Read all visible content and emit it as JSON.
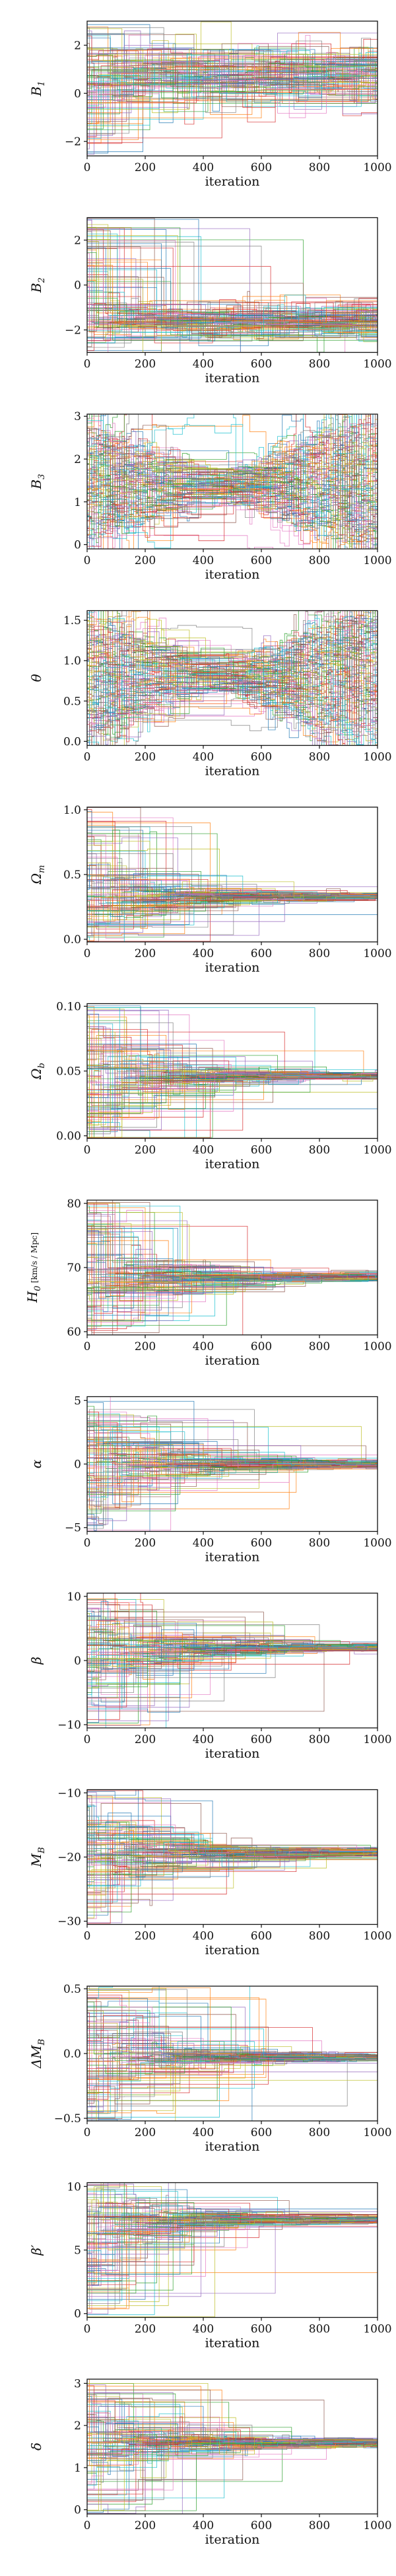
{
  "chart_data": [
    {
      "type": "line",
      "ylabel": "B",
      "ylabel_sub": "1",
      "ylabel_unit": "",
      "xlabel": "iteration",
      "x_range": [
        0,
        1000
      ],
      "xticks": [
        0,
        200,
        400,
        600,
        800,
        1000
      ],
      "xtick_labels": [
        "0",
        "200",
        "400",
        "600",
        "800",
        "1000"
      ],
      "ylim": [
        -2.6,
        3.0
      ],
      "yticks": [
        -2,
        0,
        2
      ],
      "ytick_labels": [
        "−2",
        "0",
        "2"
      ],
      "n_walkers": 100,
      "behavior": "stationary",
      "center": 0.75,
      "spread": 1.15
    },
    {
      "type": "line",
      "ylabel": "B",
      "ylabel_sub": "2",
      "ylabel_unit": "",
      "xlabel": "iteration",
      "x_range": [
        0,
        1000
      ],
      "xticks": [
        0,
        200,
        400,
        600,
        800,
        1000
      ],
      "xtick_labels": [
        "0",
        "200",
        "400",
        "600",
        "800",
        "1000"
      ],
      "ylim": [
        -3.0,
        3.0
      ],
      "yticks": [
        -2,
        0,
        2
      ],
      "ytick_labels": [
        "−2",
        "0",
        "2"
      ],
      "n_walkers": 100,
      "behavior": "stationary",
      "center": -1.6,
      "spread": 0.75
    },
    {
      "type": "line",
      "ylabel": "B",
      "ylabel_sub": "3",
      "ylabel_unit": "",
      "xlabel": "iteration",
      "x_range": [
        0,
        1000
      ],
      "xticks": [
        0,
        200,
        400,
        600,
        800,
        1000
      ],
      "xtick_labels": [
        "0",
        "200",
        "400",
        "600",
        "800",
        "1000"
      ],
      "ylim": [
        -0.1,
        3.05
      ],
      "yticks": [
        0,
        1,
        2,
        3
      ],
      "ytick_labels": [
        "0",
        "1",
        "2",
        "3"
      ],
      "n_walkers": 100,
      "behavior": "funnel-spread",
      "center": 1.4,
      "spread": 1.4
    },
    {
      "type": "line",
      "ylabel": "θ",
      "ylabel_sub": "",
      "ylabel_unit": "",
      "xlabel": "iteration",
      "x_range": [
        0,
        1000
      ],
      "xticks": [
        0,
        200,
        400,
        600,
        800,
        1000
      ],
      "xtick_labels": [
        "0",
        "200",
        "400",
        "600",
        "800",
        "1000"
      ],
      "ylim": [
        -0.05,
        1.62
      ],
      "yticks": [
        0.0,
        0.5,
        1.0,
        1.5
      ],
      "ytick_labels": [
        "0.0",
        "0.5",
        "1.0",
        "1.5"
      ],
      "n_walkers": 100,
      "behavior": "funnel-spread",
      "center": 0.8,
      "spread": 0.75
    },
    {
      "type": "line",
      "ylabel": "Ω",
      "ylabel_sub": "m",
      "ylabel_unit": "",
      "xlabel": "iteration",
      "x_range": [
        0,
        1000
      ],
      "xticks": [
        0,
        200,
        400,
        600,
        800,
        1000
      ],
      "xtick_labels": [
        "0",
        "200",
        "400",
        "600",
        "800",
        "1000"
      ],
      "ylim": [
        -0.02,
        1.02
      ],
      "yticks": [
        0.0,
        0.5,
        1.0
      ],
      "ytick_labels": [
        "0.0",
        "0.5",
        "1.0"
      ],
      "n_walkers": 100,
      "behavior": "converge",
      "center": 0.33,
      "spread": 0.45
    },
    {
      "type": "line",
      "ylabel": "Ω",
      "ylabel_sub": "b",
      "ylabel_unit": "",
      "xlabel": "iteration",
      "x_range": [
        0,
        1000
      ],
      "xticks": [
        0,
        200,
        400,
        600,
        800,
        1000
      ],
      "xtick_labels": [
        "0",
        "200",
        "400",
        "600",
        "800",
        "1000"
      ],
      "ylim": [
        -0.002,
        0.102
      ],
      "yticks": [
        0.0,
        0.05,
        0.1
      ],
      "ytick_labels": [
        "0.00",
        "0.05",
        "0.10"
      ],
      "n_walkers": 100,
      "behavior": "converge",
      "center": 0.046,
      "spread": 0.05
    },
    {
      "type": "line",
      "ylabel": "H",
      "ylabel_sub": "0",
      "ylabel_unit": "[km/s / Mpc]",
      "xlabel": "iteration",
      "x_range": [
        0,
        1000
      ],
      "xticks": [
        0,
        200,
        400,
        600,
        800,
        1000
      ],
      "xtick_labels": [
        "0",
        "200",
        "400",
        "600",
        "800",
        "1000"
      ],
      "ylim": [
        59.5,
        80.5
      ],
      "yticks": [
        60,
        70,
        80
      ],
      "ytick_labels": [
        "60",
        "70",
        "80"
      ],
      "n_walkers": 100,
      "behavior": "converge",
      "center": 68.5,
      "spread": 10
    },
    {
      "type": "line",
      "ylabel": "α",
      "ylabel_sub": "",
      "ylabel_unit": "",
      "xlabel": "iteration",
      "x_range": [
        0,
        1000
      ],
      "xticks": [
        0,
        200,
        400,
        600,
        800,
        1000
      ],
      "xtick_labels": [
        "0",
        "200",
        "400",
        "600",
        "800",
        "1000"
      ],
      "ylim": [
        -5.3,
        5.3
      ],
      "yticks": [
        -5,
        0,
        5
      ],
      "ytick_labels": [
        "−5",
        "0",
        "5"
      ],
      "n_walkers": 100,
      "behavior": "converge",
      "center": 0.0,
      "spread": 5
    },
    {
      "type": "line",
      "ylabel": "β",
      "ylabel_sub": "",
      "ylabel_unit": "",
      "xlabel": "iteration",
      "x_range": [
        0,
        1000
      ],
      "xticks": [
        0,
        200,
        400,
        600,
        800,
        1000
      ],
      "xtick_labels": [
        "0",
        "200",
        "400",
        "600",
        "800",
        "1000"
      ],
      "ylim": [
        -10.5,
        10.5
      ],
      "yticks": [
        -10,
        0,
        10
      ],
      "ytick_labels": [
        "−10",
        "0",
        "10"
      ],
      "n_walkers": 100,
      "behavior": "converge",
      "center": 2.0,
      "spread": 10
    },
    {
      "type": "line",
      "ylabel": "M",
      "ylabel_sub": "B",
      "ylabel_unit": "",
      "xlabel": "iteration",
      "x_range": [
        0,
        1000
      ],
      "xticks": [
        0,
        200,
        400,
        600,
        800,
        1000
      ],
      "xtick_labels": [
        "0",
        "200",
        "400",
        "600",
        "800",
        "1000"
      ],
      "ylim": [
        -30.5,
        -9.5
      ],
      "yticks": [
        -30,
        -20,
        -10
      ],
      "ytick_labels": [
        "−30",
        "−20",
        "−10"
      ],
      "n_walkers": 100,
      "behavior": "converge",
      "center": -19.3,
      "spread": 10
    },
    {
      "type": "line",
      "ylabel": "ΔM",
      "ylabel_sub": "B",
      "ylabel_unit": "",
      "xlabel": "iteration",
      "x_range": [
        0,
        1000
      ],
      "xticks": [
        0,
        200,
        400,
        600,
        800,
        1000
      ],
      "xtick_labels": [
        "0",
        "200",
        "400",
        "600",
        "800",
        "1000"
      ],
      "ylim": [
        -0.52,
        0.52
      ],
      "yticks": [
        -0.5,
        0.0,
        0.5
      ],
      "ytick_labels": [
        "−0.5",
        "0.0",
        "0.5"
      ],
      "n_walkers": 100,
      "behavior": "converge",
      "center": -0.03,
      "spread": 0.5
    },
    {
      "type": "line",
      "ylabel": "β′",
      "ylabel_sub": "",
      "ylabel_unit": "",
      "xlabel": "iteration",
      "x_range": [
        0,
        1000
      ],
      "xticks": [
        0,
        200,
        400,
        600,
        800,
        1000
      ],
      "xtick_labels": [
        "0",
        "200",
        "400",
        "600",
        "800",
        "1000"
      ],
      "ylim": [
        -0.3,
        10.3
      ],
      "yticks": [
        0,
        5,
        10
      ],
      "ytick_labels": [
        "0",
        "5",
        "10"
      ],
      "n_walkers": 100,
      "behavior": "converge",
      "center": 7.4,
      "spread": 5
    },
    {
      "type": "line",
      "ylabel": "δ",
      "ylabel_sub": "",
      "ylabel_unit": "",
      "xlabel": "iteration",
      "x_range": [
        0,
        1000
      ],
      "xticks": [
        0,
        200,
        400,
        600,
        800,
        1000
      ],
      "xtick_labels": [
        "0",
        "200",
        "400",
        "600",
        "800",
        "1000"
      ],
      "ylim": [
        -0.1,
        3.1
      ],
      "yticks": [
        0,
        1,
        2,
        3
      ],
      "ytick_labels": [
        "0",
        "1",
        "2",
        "3"
      ],
      "n_walkers": 100,
      "behavior": "converge",
      "center": 1.6,
      "spread": 1.5
    }
  ],
  "colors": [
    "#1f77b4",
    "#ff7f0e",
    "#2ca02c",
    "#d62728",
    "#9467bd",
    "#8c564b",
    "#e377c2",
    "#7f7f7f",
    "#bcbd22",
    "#17becf"
  ]
}
